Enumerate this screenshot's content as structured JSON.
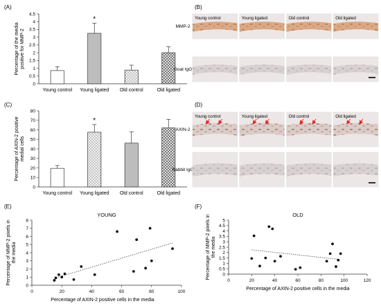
{
  "panel_labels": {
    "a": "(A)",
    "b": "(B)",
    "c": "(C)",
    "d": "(D)",
    "e": "(E)",
    "f": "(F)"
  },
  "micrographs": {
    "b": {
      "columns": [
        "Young control",
        "Young ligated",
        "Old control",
        "Old ligated"
      ],
      "rows": [
        "MMP-2",
        "Goat IgG"
      ]
    },
    "d": {
      "columns": [
        "Young control",
        "Young ligated",
        "Old control",
        "Old ligated"
      ],
      "rows": [
        "AXIN-2",
        "Rabbit IgG"
      ]
    }
  },
  "chart_data": [
    {
      "id": "A",
      "type": "bar",
      "categories": [
        "Young control",
        "Young ligated",
        "Old control",
        "Old ligated"
      ],
      "values": [
        0.85,
        3.25,
        0.88,
        2.0
      ],
      "errors": [
        0.25,
        0.65,
        0.32,
        0.38
      ],
      "patterns": [
        "white",
        "gray",
        "dots",
        "checker"
      ],
      "significance": [
        "",
        "*",
        "",
        ""
      ],
      "ylabel_lines": [
        "Percentage of the media",
        "positive for MMP-2"
      ],
      "ylim": [
        0,
        4.5
      ],
      "yticks": [
        "0",
        "0.5",
        "1",
        "1.5",
        "2",
        "2.5",
        "3",
        "3.5",
        "4",
        "4.5"
      ]
    },
    {
      "id": "C",
      "type": "bar",
      "categories": [
        "Young control",
        "Young ligated",
        "Old control",
        "Old ligated"
      ],
      "values": [
        19.5,
        57.5,
        46.0,
        62.0
      ],
      "errors": [
        3.0,
        8.0,
        12.0,
        9.0
      ],
      "patterns": [
        "white",
        "dots",
        "gray",
        "checker"
      ],
      "significance": [
        "",
        "*",
        "",
        ""
      ],
      "ylabel_lines": [
        "Percentage of AXIN-2 positive",
        "medial cells"
      ],
      "ylim": [
        0,
        80
      ],
      "yticks": [
        "0",
        "10",
        "20",
        "30",
        "40",
        "50",
        "60",
        "70",
        "80"
      ]
    },
    {
      "id": "E",
      "type": "scatter",
      "title": "YOUNG",
      "xlabel": "Percentage of AXIN-2 positive cells in the media",
      "ylabel_lines": [
        "Percentage of MMP-2 pixels in",
        "the media"
      ],
      "xlim": [
        0,
        100
      ],
      "ylim": [
        0,
        8
      ],
      "xticks": [
        "0",
        "20",
        "40",
        "60",
        "80",
        "100"
      ],
      "yticks": [
        "0",
        "1",
        "2",
        "3",
        "4",
        "5",
        "6",
        "7",
        "8"
      ],
      "points": [
        [
          15,
          0.6
        ],
        [
          16,
          0.9
        ],
        [
          18,
          1.3
        ],
        [
          20,
          1.0
        ],
        [
          22,
          1.4
        ],
        [
          28,
          0.7
        ],
        [
          33,
          2.3
        ],
        [
          42,
          1.3
        ],
        [
          57,
          6.6
        ],
        [
          68,
          1.7
        ],
        [
          70,
          5.6
        ],
        [
          76,
          2.1
        ],
        [
          79,
          7.0
        ],
        [
          80,
          3.0
        ],
        [
          94,
          4.5
        ]
      ],
      "trendline": [
        [
          15,
          0.85
        ],
        [
          94,
          5.2
        ]
      ]
    },
    {
      "id": "F",
      "type": "scatter",
      "title": "OLD",
      "xlabel": "Percentage of AXIN-2 positive cells in the media",
      "ylabel_lines": [
        "Percentage of MMP-2 pixels in",
        "the media"
      ],
      "xlim": [
        0,
        120
      ],
      "ylim": [
        0,
        5
      ],
      "xticks": [
        "0",
        "20",
        "40",
        "60",
        "80",
        "100",
        "120"
      ],
      "yticks": [
        "0",
        "0.5",
        "1",
        "1.5",
        "2",
        "2.5",
        "3",
        "3.5",
        "4",
        "4.5",
        "5"
      ],
      "points": [
        [
          20,
          1.45
        ],
        [
          22,
          3.55
        ],
        [
          27,
          0.75
        ],
        [
          32,
          1.5
        ],
        [
          35,
          4.4
        ],
        [
          38,
          4.2
        ],
        [
          40,
          1.2
        ],
        [
          45,
          1.65
        ],
        [
          58,
          0.45
        ],
        [
          62,
          0.6
        ],
        [
          85,
          1.2
        ],
        [
          88,
          1.9
        ],
        [
          90,
          2.8
        ],
        [
          93,
          0.7
        ],
        [
          95,
          1.3
        ],
        [
          97,
          1.9
        ]
      ],
      "trendline": [
        [
          20,
          2.25
        ],
        [
          97,
          1.35
        ]
      ]
    }
  ],
  "colors": {
    "bar_stroke": "#333333",
    "gray_fill": "#bdbdbd",
    "dot_fill": "#f2f2f2",
    "arrow": "#e8201f",
    "scale_bar": "#000000"
  }
}
